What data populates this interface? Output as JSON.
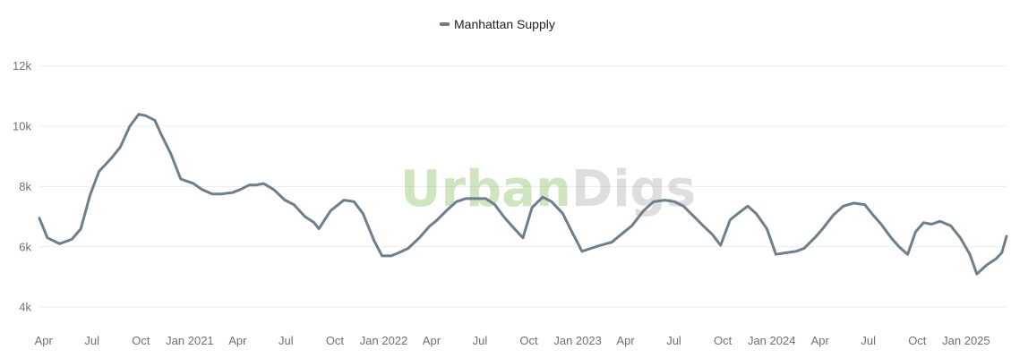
{
  "watermark": {
    "part1": "Urban",
    "part2": "Digs",
    "colors": {
      "part1": "#8fc26b",
      "part2": "#9a9a9a"
    }
  },
  "chart_data": {
    "type": "line",
    "legend_position": "top-center",
    "grid": true,
    "x_range": [
      "2020-03-24",
      "2025-03-18"
    ],
    "ylim": [
      3500,
      13000
    ],
    "y_ticks": [
      {
        "value": 4000,
        "label": "4k"
      },
      {
        "value": 6000,
        "label": "6k"
      },
      {
        "value": 8000,
        "label": "8k"
      },
      {
        "value": 10000,
        "label": "10k"
      },
      {
        "value": 12000,
        "label": "12k"
      }
    ],
    "x_ticks": [
      {
        "date": "2020-04-01",
        "label": "Apr"
      },
      {
        "date": "2020-07-01",
        "label": "Jul"
      },
      {
        "date": "2020-10-01",
        "label": "Oct"
      },
      {
        "date": "2021-01-01",
        "label": "Jan 2021"
      },
      {
        "date": "2021-04-01",
        "label": "Apr"
      },
      {
        "date": "2021-07-01",
        "label": "Jul"
      },
      {
        "date": "2021-10-01",
        "label": "Oct"
      },
      {
        "date": "2022-01-01",
        "label": "Jan 2022"
      },
      {
        "date": "2022-04-01",
        "label": "Apr"
      },
      {
        "date": "2022-07-01",
        "label": "Jul"
      },
      {
        "date": "2022-10-01",
        "label": "Oct"
      },
      {
        "date": "2023-01-01",
        "label": "Jan 2023"
      },
      {
        "date": "2023-04-01",
        "label": "Apr"
      },
      {
        "date": "2023-07-01",
        "label": "Jul"
      },
      {
        "date": "2023-10-01",
        "label": "Oct"
      },
      {
        "date": "2024-01-01",
        "label": "Jan 2024"
      },
      {
        "date": "2024-04-01",
        "label": "Apr"
      },
      {
        "date": "2024-07-01",
        "label": "Jul"
      },
      {
        "date": "2024-10-01",
        "label": "Oct"
      },
      {
        "date": "2025-01-01",
        "label": "Jan 2025"
      }
    ],
    "series": [
      {
        "name": "Manhattan Supply",
        "color": "#6e7f8b",
        "points": [
          [
            "2020-03-24",
            6950
          ],
          [
            "2020-04-08",
            6300
          ],
          [
            "2020-05-01",
            6100
          ],
          [
            "2020-05-24",
            6250
          ],
          [
            "2020-06-10",
            6600
          ],
          [
            "2020-06-27",
            7700
          ],
          [
            "2020-07-14",
            8500
          ],
          [
            "2020-08-07",
            8950
          ],
          [
            "2020-08-23",
            9300
          ],
          [
            "2020-09-10",
            10000
          ],
          [
            "2020-09-27",
            10400
          ],
          [
            "2020-10-10",
            10350
          ],
          [
            "2020-10-27",
            10200
          ],
          [
            "2020-11-09",
            9700
          ],
          [
            "2020-11-26",
            9100
          ],
          [
            "2020-12-15",
            8250
          ],
          [
            "2021-01-08",
            8100
          ],
          [
            "2021-01-24",
            7900
          ],
          [
            "2021-02-12",
            7750
          ],
          [
            "2021-03-01",
            7750
          ],
          [
            "2021-03-22",
            7800
          ],
          [
            "2021-04-06",
            7900
          ],
          [
            "2021-04-23",
            8050
          ],
          [
            "2021-05-06",
            8050
          ],
          [
            "2021-05-20",
            8100
          ],
          [
            "2021-06-08",
            7900
          ],
          [
            "2021-06-29",
            7550
          ],
          [
            "2021-07-16",
            7400
          ],
          [
            "2021-08-06",
            7000
          ],
          [
            "2021-08-23",
            6800
          ],
          [
            "2021-09-01",
            6600
          ],
          [
            "2021-09-23",
            7200
          ],
          [
            "2021-10-18",
            7550
          ],
          [
            "2021-11-06",
            7500
          ],
          [
            "2021-11-23",
            7100
          ],
          [
            "2021-12-14",
            6200
          ],
          [
            "2021-12-29",
            5700
          ],
          [
            "2022-01-15",
            5700
          ],
          [
            "2022-01-29",
            5800
          ],
          [
            "2022-02-16",
            5950
          ],
          [
            "2022-03-09",
            6300
          ],
          [
            "2022-03-29",
            6700
          ],
          [
            "2022-04-09",
            6850
          ],
          [
            "2022-04-29",
            7200
          ],
          [
            "2022-05-18",
            7500
          ],
          [
            "2022-06-04",
            7600
          ],
          [
            "2022-06-24",
            7600
          ],
          [
            "2022-07-12",
            7600
          ],
          [
            "2022-07-29",
            7400
          ],
          [
            "2022-08-15",
            7000
          ],
          [
            "2022-09-04",
            6600
          ],
          [
            "2022-09-20",
            6300
          ],
          [
            "2022-10-07",
            7300
          ],
          [
            "2022-10-27",
            7650
          ],
          [
            "2022-11-13",
            7500
          ],
          [
            "2022-12-04",
            7100
          ],
          [
            "2022-12-21",
            6500
          ],
          [
            "2023-01-09",
            5850
          ],
          [
            "2023-01-26",
            5950
          ],
          [
            "2023-02-13",
            6050
          ],
          [
            "2023-03-06",
            6150
          ],
          [
            "2023-03-23",
            6400
          ],
          [
            "2023-04-13",
            6700
          ],
          [
            "2023-05-05",
            7200
          ],
          [
            "2023-05-24",
            7500
          ],
          [
            "2023-06-14",
            7550
          ],
          [
            "2023-07-02",
            7500
          ],
          [
            "2023-07-19",
            7350
          ],
          [
            "2023-08-08",
            7000
          ],
          [
            "2023-08-25",
            6700
          ],
          [
            "2023-09-12",
            6400
          ],
          [
            "2023-09-27",
            6050
          ],
          [
            "2023-10-15",
            6900
          ],
          [
            "2023-11-02",
            7150
          ],
          [
            "2023-11-17",
            7350
          ],
          [
            "2023-12-03",
            7100
          ],
          [
            "2023-12-23",
            6600
          ],
          [
            "2024-01-09",
            5750
          ],
          [
            "2024-01-27",
            5800
          ],
          [
            "2024-02-16",
            5850
          ],
          [
            "2024-03-02",
            5950
          ],
          [
            "2024-03-22",
            6300
          ],
          [
            "2024-04-06",
            6600
          ],
          [
            "2024-04-26",
            7050
          ],
          [
            "2024-05-15",
            7350
          ],
          [
            "2024-06-03",
            7450
          ],
          [
            "2024-06-24",
            7400
          ],
          [
            "2024-07-10",
            7050
          ],
          [
            "2024-07-25",
            6750
          ],
          [
            "2024-08-13",
            6300
          ],
          [
            "2024-08-28",
            6000
          ],
          [
            "2024-09-13",
            5750
          ],
          [
            "2024-09-28",
            6500
          ],
          [
            "2024-10-13",
            6800
          ],
          [
            "2024-10-28",
            6750
          ],
          [
            "2024-11-13",
            6850
          ],
          [
            "2024-12-03",
            6700
          ],
          [
            "2024-12-21",
            6300
          ],
          [
            "2025-01-08",
            5750
          ],
          [
            "2025-01-21",
            5100
          ],
          [
            "2025-02-09",
            5400
          ],
          [
            "2025-02-26",
            5600
          ],
          [
            "2025-03-09",
            5800
          ],
          [
            "2025-03-18",
            6350
          ]
        ]
      }
    ]
  }
}
